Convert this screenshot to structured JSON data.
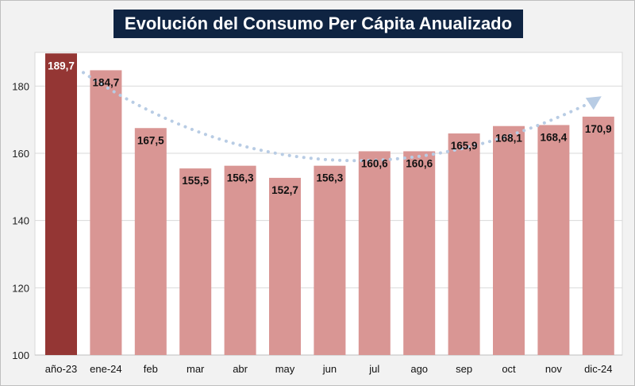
{
  "chart_data": {
    "type": "bar",
    "title": "Evolución del Consumo Per Cápita Anualizado",
    "categories": [
      "año-23",
      "ene-24",
      "feb",
      "mar",
      "abr",
      "may",
      "jun",
      "jul",
      "ago",
      "sep",
      "oct",
      "nov",
      "dic-24"
    ],
    "values": [
      189.7,
      184.7,
      167.5,
      155.5,
      156.3,
      152.7,
      156.3,
      160.6,
      160.6,
      165.9,
      168.1,
      168.4,
      170.9
    ],
    "labels": [
      "189,7",
      "184,7",
      "167,5",
      "155,5",
      "156,3",
      "152,7",
      "156,3",
      "160,6",
      "160,6",
      "165,9",
      "168,1",
      "168,4",
      "170,9"
    ],
    "ylim": [
      100,
      190
    ],
    "yticks": [
      100,
      120,
      140,
      160,
      180
    ],
    "xlabel": "",
    "ylabel": "",
    "grid": true,
    "trendline": "dotted-arrow",
    "colors": {
      "highlight_bar": "#943634",
      "bar": "#d99694",
      "title_bg": "#0f2442",
      "trend": "#b8cce4",
      "grid": "#d9d9d9"
    }
  }
}
